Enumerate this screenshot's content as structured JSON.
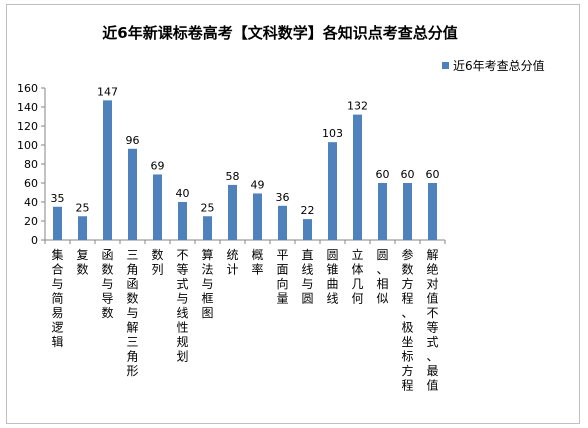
{
  "chart_data": {
    "type": "bar",
    "title": "近6年新课标卷高考【文科数学】各知识点考查总分值",
    "series": [
      {
        "name": "近6年考查总分值",
        "color": "#4f81bd",
        "values": [
          35,
          25,
          147,
          96,
          69,
          40,
          25,
          58,
          49,
          36,
          22,
          103,
          132,
          60,
          60,
          60
        ]
      }
    ],
    "categories": [
      "集合与简易逻辑",
      "复数",
      "函数与导数",
      "三角函数与解三角形",
      "数列",
      "不等式与线性规划",
      "算法与框图",
      "统计",
      "概率",
      "平面向量",
      "直线与圆",
      "圆锥曲线",
      "立体几何",
      "圆、相似",
      "参数方程、极坐标方程",
      "解绝对值不等式、最值"
    ],
    "ylim": [
      0,
      160
    ],
    "yticks": [
      0,
      20,
      40,
      60,
      80,
      100,
      120,
      140,
      160
    ],
    "grid": false,
    "legend_position": "top-right",
    "xlabel": "",
    "ylabel": ""
  }
}
